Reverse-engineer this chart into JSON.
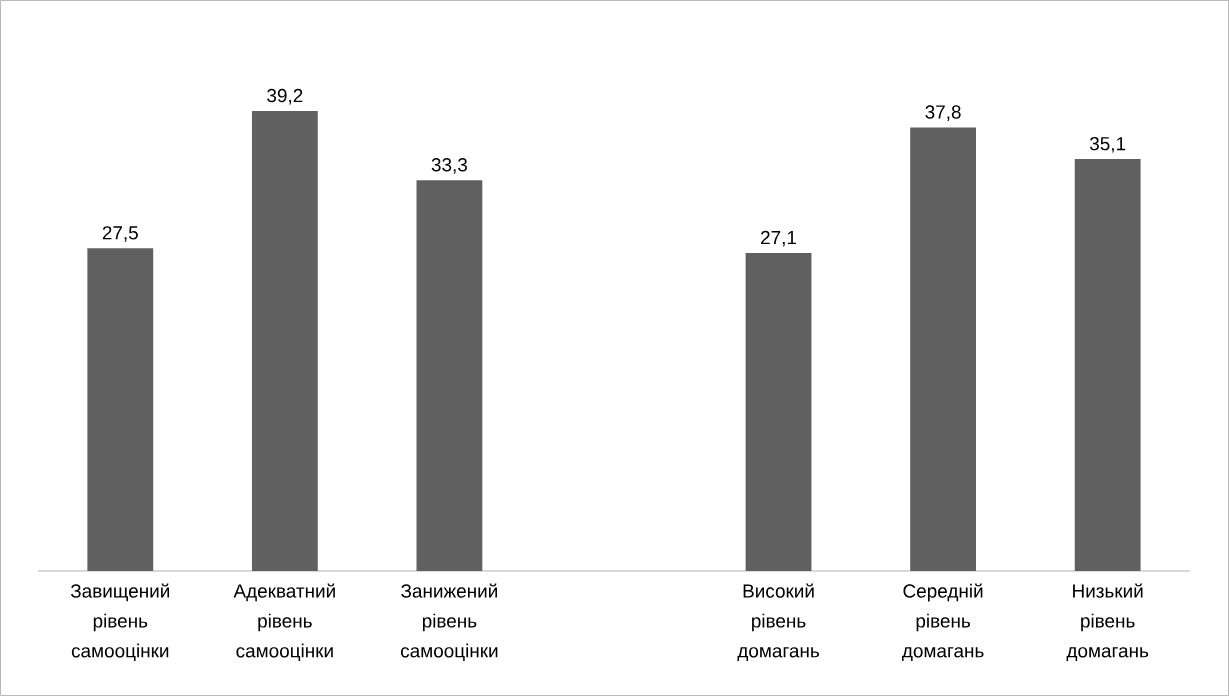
{
  "chart_data": {
    "type": "bar",
    "categories": [
      "Завищений рівень самооцінки",
      "Адекватний рівень самооцінки",
      "Занижений рівень самооцінки",
      null,
      "Високий рівень домагань",
      "Середній рівень домагань",
      "Низький рівень домагань"
    ],
    "values": [
      27.5,
      39.2,
      33.3,
      null,
      27.1,
      37.8,
      35.1
    ],
    "value_labels": [
      "27,5",
      "39,2",
      "33,3",
      null,
      "27,1",
      "37,8",
      "35,1"
    ],
    "color": "#606060"
  }
}
